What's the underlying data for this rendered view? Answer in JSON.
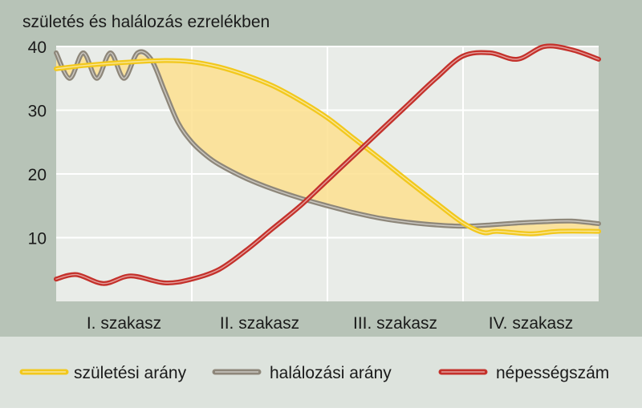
{
  "chart_data": {
    "type": "line",
    "title": "születés és halálozás ezrelékben",
    "xlabel": "",
    "ylabel": "",
    "ylim": [
      0,
      40
    ],
    "yticks": [
      10,
      20,
      30,
      40
    ],
    "x_range": [
      0,
      4
    ],
    "stages": [
      "I. szakasz",
      "II. szakasz",
      "III. szakasz",
      "IV. szakasz"
    ],
    "grid": true,
    "legend_position": "bottom",
    "shaded_region": {
      "between": [
        "születési arány",
        "halálozási arány"
      ],
      "color": "#fde08f"
    },
    "series": [
      {
        "name": "születési arány",
        "color": "#f2c81d",
        "x": [
          0,
          0.2,
          0.5,
          0.8,
          1.0,
          1.2,
          1.4,
          1.6,
          1.8,
          2.0,
          2.2,
          2.4,
          2.6,
          2.8,
          3.0,
          3.15,
          3.25,
          3.5,
          3.7,
          4.0
        ],
        "values": [
          36.5,
          37,
          37.5,
          37.8,
          37.6,
          36.8,
          35.5,
          33.8,
          31.5,
          28.8,
          25.5,
          22.2,
          18.8,
          15.5,
          12.3,
          10.8,
          11.0,
          10.6,
          11.0,
          11.0
        ]
      },
      {
        "name": "halálozási arány",
        "color": "#8e877a",
        "x": [
          0,
          0.1,
          0.2,
          0.3,
          0.4,
          0.5,
          0.6,
          0.7,
          0.8,
          0.9,
          1.0,
          1.1,
          1.2,
          1.4,
          1.6,
          1.8,
          2.0,
          2.2,
          2.4,
          2.6,
          2.8,
          3.0,
          3.2,
          3.4,
          3.6,
          3.8,
          4.0
        ],
        "values": [
          39,
          35,
          39,
          35,
          39,
          35,
          39,
          38,
          33,
          28,
          25,
          23,
          21.5,
          19.3,
          17.6,
          16.2,
          15,
          13.9,
          13.0,
          12.4,
          12.0,
          11.8,
          12.0,
          12.3,
          12.5,
          12.6,
          12.2
        ]
      },
      {
        "name": "népességszám",
        "color": "#c4312b",
        "x": [
          0,
          0.15,
          0.35,
          0.55,
          0.8,
          1.0,
          1.2,
          1.4,
          1.6,
          1.8,
          2.0,
          2.2,
          2.4,
          2.6,
          2.8,
          3.0,
          3.2,
          3.4,
          3.6,
          3.8,
          4.0
        ],
        "values": [
          3.5,
          4.2,
          2.8,
          4.0,
          2.9,
          3.5,
          5.0,
          8.0,
          11.5,
          15.0,
          19.0,
          23.0,
          27.0,
          31.0,
          35.0,
          38.5,
          39.0,
          38.0,
          40.0,
          39.5,
          38.0
        ]
      }
    ]
  }
}
